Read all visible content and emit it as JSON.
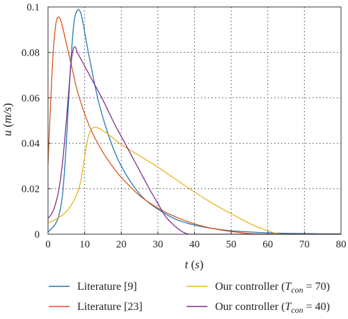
{
  "chart_data": {
    "type": "line",
    "xlabel": "t (s)",
    "ylabel": "u (m/s)",
    "xlim": [
      0,
      80
    ],
    "ylim": [
      0,
      0.1
    ],
    "x_ticks": [
      0,
      10,
      20,
      30,
      40,
      50,
      60,
      70,
      80
    ],
    "y_ticks": [
      0,
      0.02,
      0.04,
      0.06,
      0.08,
      0.1
    ],
    "x_tick_labels": [
      "0",
      "10",
      "20",
      "30",
      "40",
      "50",
      "60",
      "70",
      "80"
    ],
    "y_tick_labels": [
      "0",
      "0.02",
      "0.04",
      "0.06",
      "0.08",
      "0.1"
    ],
    "grid": true,
    "legend_position": "bottom",
    "series": [
      {
        "name": "Literature [9]",
        "color": "#1f77b4",
        "x": [
          0,
          1,
          2,
          3,
          4,
          5,
          6,
          7,
          8,
          9,
          10,
          11,
          12,
          13,
          14,
          16,
          18,
          20,
          23,
          26,
          30,
          35,
          40,
          45,
          50,
          55,
          60,
          65,
          70,
          75,
          80
        ],
        "y": [
          0.001,
          0.0025,
          0.0045,
          0.0085,
          0.018,
          0.04,
          0.07,
          0.092,
          0.0985,
          0.097,
          0.089,
          0.08,
          0.072,
          0.064,
          0.057,
          0.046,
          0.037,
          0.03,
          0.022,
          0.016,
          0.011,
          0.0065,
          0.004,
          0.0025,
          0.0015,
          0.001,
          0.0006,
          0.0004,
          0.0003,
          0.0002,
          0.0002
        ]
      },
      {
        "name": "Literature [23]",
        "color": "#d95319",
        "x": [
          0,
          0.5,
          1,
          1.5,
          2,
          2.5,
          3,
          3.5,
          4,
          5,
          6,
          7,
          8,
          10,
          12,
          15,
          18,
          20,
          25,
          30,
          35,
          40,
          45,
          50,
          52,
          54,
          56,
          58,
          60,
          70,
          80
        ],
        "y": [
          0.031,
          0.05,
          0.068,
          0.082,
          0.091,
          0.095,
          0.0955,
          0.094,
          0.091,
          0.084,
          0.077,
          0.07,
          0.063,
          0.053,
          0.045,
          0.036,
          0.029,
          0.025,
          0.017,
          0.0115,
          0.0075,
          0.0045,
          0.0025,
          0.0012,
          0.0008,
          0.0004,
          0.0002,
          0.0001,
          0.0,
          0.0,
          0.0
        ]
      },
      {
        "name": "Our controller (T_con = 70)",
        "name_main": "Our controller (",
        "name_var": "T",
        "name_sub": "con",
        "name_tail": " = 70)",
        "color": "#edb120",
        "x": [
          0,
          2,
          4,
          6,
          8,
          9,
          10,
          11,
          12,
          13,
          14,
          16,
          18,
          20,
          25,
          30,
          35,
          40,
          45,
          50,
          55,
          58,
          60,
          62,
          63,
          64,
          65,
          70,
          80
        ],
        "y": [
          0.005,
          0.0065,
          0.0085,
          0.012,
          0.018,
          0.024,
          0.034,
          0.043,
          0.0465,
          0.047,
          0.0465,
          0.0445,
          0.042,
          0.0395,
          0.0345,
          0.0295,
          0.024,
          0.0185,
          0.0135,
          0.009,
          0.0048,
          0.0027,
          0.0015,
          0.0005,
          0.0002,
          0.0,
          0.0,
          0.0,
          0.0
        ]
      },
      {
        "name": "Our controller (T_con = 40)",
        "name_main": "Our controller (",
        "name_var": "T",
        "name_sub": "con",
        "name_tail": " = 40)",
        "color": "#7e2f8e",
        "x": [
          0,
          1,
          2,
          3,
          4,
          5,
          6,
          6.5,
          7,
          7.5,
          8,
          9,
          10,
          12,
          15,
          18,
          20,
          23,
          25,
          28,
          30,
          32,
          34,
          36,
          37,
          38,
          39,
          40,
          50,
          60,
          70,
          80
        ],
        "y": [
          0.007,
          0.009,
          0.013,
          0.02,
          0.032,
          0.05,
          0.07,
          0.078,
          0.082,
          0.0822,
          0.08,
          0.077,
          0.074,
          0.068,
          0.059,
          0.049,
          0.043,
          0.034,
          0.028,
          0.019,
          0.0135,
          0.008,
          0.0045,
          0.0018,
          0.0008,
          0.0002,
          0.0,
          0.0,
          0.0,
          0.0,
          0.0,
          0.0
        ]
      }
    ]
  }
}
